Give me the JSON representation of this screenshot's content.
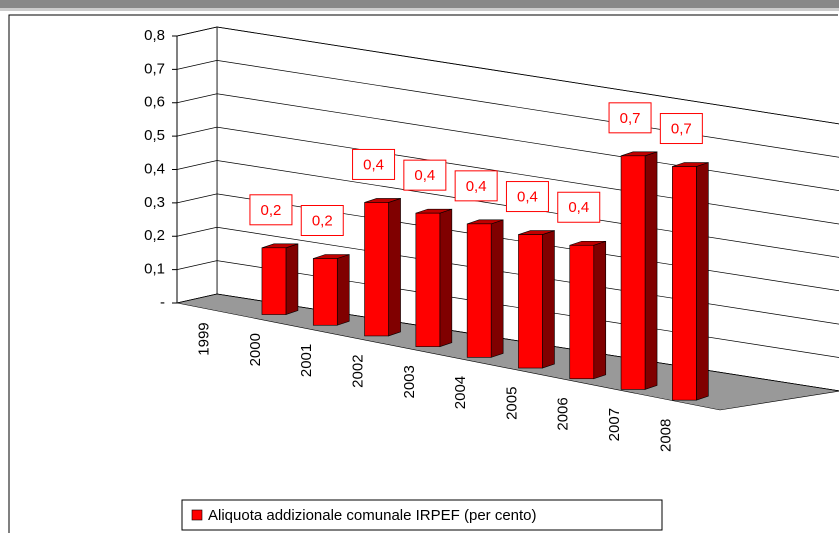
{
  "chart_data": {
    "type": "bar3d",
    "categories": [
      "1999",
      "2000",
      "2001",
      "2002",
      "2003",
      "2004",
      "2005",
      "2006",
      "2007",
      "2008"
    ],
    "series": [
      {
        "name": "Aliquota addizionale comunale IRPEF (per cento)",
        "color": "#ff0000",
        "values": [
          null,
          0.2,
          0.2,
          0.4,
          0.4,
          0.4,
          0.4,
          0.4,
          0.7,
          0.7
        ],
        "value_labels": [
          null,
          "0,2",
          "0,2",
          "0,4",
          "0,4",
          "0,4",
          "0,4",
          "0,4",
          "0,7",
          "0,7"
        ]
      }
    ],
    "ylim": [
      0,
      0.8
    ],
    "yticks": [
      {
        "value": 0,
        "label": "-"
      },
      {
        "value": 0.1,
        "label": "0,1"
      },
      {
        "value": 0.2,
        "label": "0,2"
      },
      {
        "value": 0.3,
        "label": "0,3"
      },
      {
        "value": 0.4,
        "label": "0,4"
      },
      {
        "value": 0.5,
        "label": "0,5"
      },
      {
        "value": 0.6,
        "label": "0,6"
      },
      {
        "value": 0.7,
        "label": "0,7"
      },
      {
        "value": 0.8,
        "label": "0,8"
      }
    ],
    "grid": true,
    "legend": "bottom"
  }
}
